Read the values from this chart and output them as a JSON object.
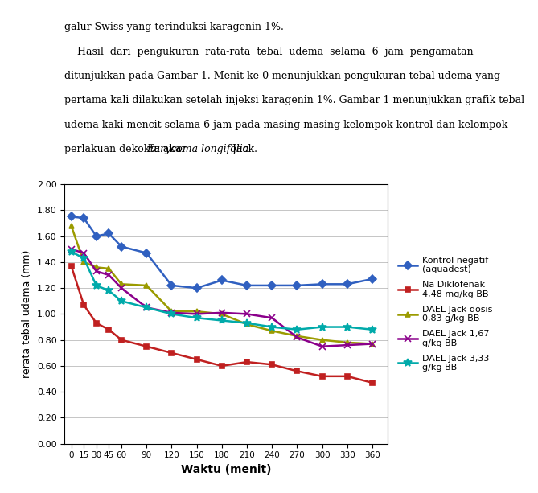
{
  "x": [
    0,
    15,
    30,
    45,
    60,
    90,
    120,
    150,
    180,
    210,
    240,
    270,
    300,
    330,
    360
  ],
  "series": [
    {
      "label": "Kontrol negatif\n(aquadest)",
      "color": "#3060C0",
      "marker": "D",
      "markersize": 5,
      "linewidth": 1.8,
      "values": [
        1.75,
        1.74,
        1.6,
        1.62,
        1.52,
        1.47,
        1.22,
        1.2,
        1.26,
        1.22,
        1.22,
        1.22,
        1.23,
        1.23,
        1.27
      ]
    },
    {
      "label": "Na Diklofenak\n4,48 mg/kg BB",
      "color": "#C02020",
      "marker": "s",
      "markersize": 5,
      "linewidth": 1.8,
      "values": [
        1.37,
        1.07,
        0.93,
        0.88,
        0.8,
        0.75,
        0.7,
        0.65,
        0.6,
        0.63,
        0.61,
        0.56,
        0.52,
        0.52,
        0.47
      ]
    },
    {
      "label": "DAEL Jack dosis\n0,83 g/kg BB",
      "color": "#9B9B00",
      "marker": "^",
      "markersize": 5,
      "linewidth": 1.8,
      "values": [
        1.68,
        1.4,
        1.36,
        1.35,
        1.23,
        1.22,
        1.02,
        1.02,
        1.0,
        0.92,
        0.87,
        0.83,
        0.8,
        0.78,
        0.77
      ]
    },
    {
      "label": "DAEL Jack 1,67\ng/kg BB",
      "color": "#8B008B",
      "marker": "x",
      "markersize": 6,
      "linewidth": 1.8,
      "values": [
        1.5,
        1.47,
        1.33,
        1.3,
        1.2,
        1.05,
        1.01,
        1.0,
        1.01,
        1.0,
        0.97,
        0.82,
        0.75,
        0.76,
        0.77
      ]
    },
    {
      "label": "DAEL Jack 3,33\ng/kg BB",
      "color": "#00AAAA",
      "marker": "*",
      "markersize": 7,
      "linewidth": 1.8,
      "values": [
        1.48,
        1.43,
        1.22,
        1.18,
        1.1,
        1.05,
        1.0,
        0.97,
        0.95,
        0.93,
        0.9,
        0.88,
        0.9,
        0.9,
        0.88
      ]
    }
  ],
  "text_lines": [
    "galur Swiss yang terinduksi karagenin 1%.",
    "    Hasil  dari  pengukuran  rata-rata  tebal  udema  selama  6  jam  pengamatan",
    "ditunjukkan pada Gambar 1. Menit ke-0 menunjukkan pengukuran tebal udema yang",
    "pertama kali dilakukan setelah injeksi karagenin 1%. Gambar 1 menunjukkan grafik tebal",
    "udema kaki mencit selama 6 jam pada masing-masing kelompok kontrol dan kelompok",
    "perlakuan dekokta akar Eurycoma longifolia Jack."
  ],
  "xlabel": "Waktu (menit)",
  "ylabel": "rerata tebal udema (mm)",
  "ylim": [
    0.0,
    2.0
  ],
  "yticks": [
    0.0,
    0.2,
    0.4,
    0.6,
    0.8,
    1.0,
    1.2,
    1.4,
    1.6,
    1.8,
    2.0
  ],
  "xticks": [
    0,
    15,
    30,
    45,
    60,
    90,
    120,
    150,
    180,
    210,
    240,
    270,
    300,
    330,
    360
  ],
  "background_color": "#FFFFFF",
  "grid": true,
  "fig_width": 6.69,
  "fig_height": 6.13
}
